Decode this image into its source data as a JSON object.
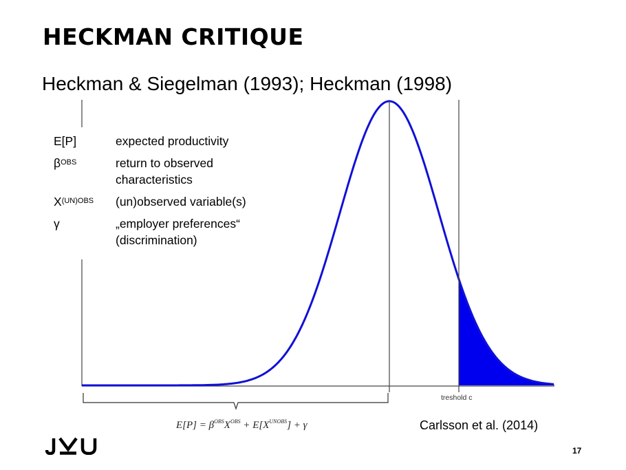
{
  "slide": {
    "title": "HECKMAN CRITIQUE",
    "subtitle": "Heckman & Siegelman (1993); Heckman (1998)",
    "source": "Carlsson et al. (2014)",
    "page_number": "17",
    "logo_text": "JKU"
  },
  "legend": [
    {
      "symbol": "E[P]",
      "sup": "",
      "description": "expected productivity"
    },
    {
      "symbol": "β",
      "sup": "OBS",
      "description": "return to observed characteristics"
    },
    {
      "symbol": "X",
      "sup": "(UN)OBS",
      "description": "(un)observed variable(s)"
    },
    {
      "symbol": "γ",
      "sup": "",
      "description": "„employer preferences“ (discrimination)"
    }
  ],
  "diagram": {
    "threshold_label": "treshold c",
    "formula": "E[P] = βOBS XOBS + E[XUNOBS] + γ",
    "curve_color": "#1010d8",
    "shade_color": "#0000ee"
  }
}
